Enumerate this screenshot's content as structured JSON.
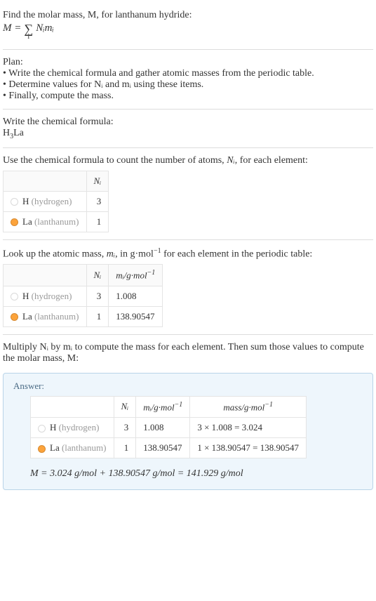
{
  "intro": {
    "line1": "Find the molar mass, M, for lanthanum hydride:",
    "formula_lhs": "M = ",
    "formula_sum_var": "i",
    "formula_rhs": "Nᵢmᵢ"
  },
  "plan": {
    "heading": "Plan:",
    "items": [
      "• Write the chemical formula and gather atomic masses from the periodic table.",
      "• Determine values for Nᵢ and mᵢ using these items.",
      "• Finally, compute the mass."
    ]
  },
  "chemFormula": {
    "heading": "Write the chemical formula:",
    "formula_html": "H₃La"
  },
  "countAtoms": {
    "heading_pre": "Use the chemical formula to count the number of atoms, ",
    "heading_mid": "Nᵢ",
    "heading_post": ", for each element:",
    "col_n": "Nᵢ",
    "rows": [
      {
        "swatch": "#ffffff",
        "sym": "H",
        "name": "(hydrogen)",
        "n": "3"
      },
      {
        "swatch": "#fca33b",
        "sym": "La",
        "name": "(lanthanum)",
        "n": "1"
      }
    ]
  },
  "atomicMass": {
    "heading_pre": "Look up the atomic mass, ",
    "heading_mi": "mᵢ",
    "heading_mid": ", in g·mol",
    "heading_exp": "−1",
    "heading_post": " for each element in the periodic table:",
    "col_n": "Nᵢ",
    "col_m_pre": "mᵢ/g·mol",
    "col_m_exp": "−1",
    "rows": [
      {
        "swatch": "#ffffff",
        "sym": "H",
        "name": "(hydrogen)",
        "n": "3",
        "m": "1.008"
      },
      {
        "swatch": "#fca33b",
        "sym": "La",
        "name": "(lanthanum)",
        "n": "1",
        "m": "138.90547"
      }
    ]
  },
  "multiply": {
    "heading": "Multiply Nᵢ by mᵢ to compute the mass for each element. Then sum those values to compute the molar mass, M:"
  },
  "answer": {
    "label": "Answer:",
    "col_n": "Nᵢ",
    "col_m_pre": "mᵢ/g·mol",
    "col_m_exp": "−1",
    "col_mass_pre": "mass/g·mol",
    "col_mass_exp": "−1",
    "rows": [
      {
        "swatch": "#ffffff",
        "sym": "H",
        "name": "(hydrogen)",
        "n": "3",
        "m": "1.008",
        "mass": "3 × 1.008 = 3.024"
      },
      {
        "swatch": "#fca33b",
        "sym": "La",
        "name": "(lanthanum)",
        "n": "1",
        "m": "138.90547",
        "mass": "1 × 138.90547 = 138.90547"
      }
    ],
    "result": "M = 3.024 g/mol + 138.90547 g/mol = 141.929 g/mol"
  },
  "colors": {
    "text": "#333333",
    "muted": "#999999",
    "rule": "#dddddd",
    "tableBorder": "#e4e4e4",
    "answerBg": "#eef6fc",
    "answerBorder": "#b9d4e8",
    "answerLabel": "#4a6b85"
  }
}
